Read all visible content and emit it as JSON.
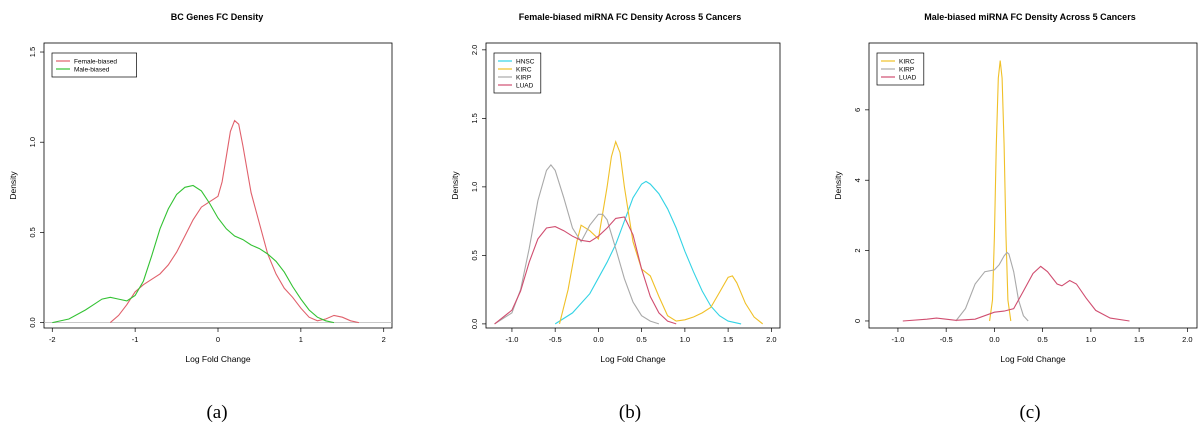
{
  "figure": {
    "captions": [
      "(a)",
      "(b)",
      "(c)"
    ]
  },
  "chart_data": [
    {
      "type": "line",
      "title": "BC Genes FC Density",
      "xlabel": "Log Fold Change",
      "ylabel": "Density",
      "xlim": [
        -2.1,
        2.1
      ],
      "ylim": [
        -0.03,
        1.55
      ],
      "xticks": [
        -2,
        -1,
        0,
        1,
        2
      ],
      "yticks": [
        0.0,
        0.5,
        1.0,
        1.5
      ],
      "tick_decimals": 0,
      "ytick_decimals": 1,
      "baseline": true,
      "grid": false,
      "legend": "top-left",
      "series": [
        {
          "name": "Female-biased",
          "color": "#e0606b",
          "x": [
            -1.3,
            -1.2,
            -1.1,
            -1.0,
            -0.9,
            -0.8,
            -0.7,
            -0.6,
            -0.5,
            -0.4,
            -0.3,
            -0.2,
            -0.1,
            0.0,
            0.05,
            0.1,
            0.15,
            0.2,
            0.25,
            0.3,
            0.35,
            0.4,
            0.5,
            0.6,
            0.7,
            0.8,
            0.9,
            1.0,
            1.1,
            1.2,
            1.3,
            1.4,
            1.5,
            1.6,
            1.7
          ],
          "y": [
            0.0,
            0.04,
            0.1,
            0.17,
            0.21,
            0.24,
            0.27,
            0.32,
            0.39,
            0.48,
            0.57,
            0.64,
            0.67,
            0.7,
            0.78,
            0.92,
            1.06,
            1.12,
            1.1,
            0.98,
            0.85,
            0.72,
            0.55,
            0.38,
            0.27,
            0.19,
            0.14,
            0.08,
            0.03,
            0.01,
            0.02,
            0.04,
            0.03,
            0.01,
            0.0
          ]
        },
        {
          "name": "Male-biased",
          "color": "#33c233",
          "x": [
            -2.0,
            -1.8,
            -1.6,
            -1.5,
            -1.4,
            -1.3,
            -1.2,
            -1.1,
            -1.0,
            -0.9,
            -0.8,
            -0.7,
            -0.6,
            -0.5,
            -0.4,
            -0.3,
            -0.2,
            -0.1,
            0.0,
            0.1,
            0.2,
            0.3,
            0.4,
            0.5,
            0.6,
            0.7,
            0.8,
            0.9,
            1.0,
            1.1,
            1.2,
            1.3,
            1.4
          ],
          "y": [
            0.0,
            0.02,
            0.07,
            0.1,
            0.13,
            0.14,
            0.13,
            0.12,
            0.15,
            0.23,
            0.37,
            0.52,
            0.63,
            0.71,
            0.75,
            0.76,
            0.73,
            0.66,
            0.58,
            0.52,
            0.48,
            0.46,
            0.43,
            0.41,
            0.38,
            0.34,
            0.28,
            0.2,
            0.13,
            0.07,
            0.03,
            0.01,
            0.0
          ]
        }
      ]
    },
    {
      "type": "line",
      "title": "Female-biased miRNA FC Density Across 5 Cancers",
      "xlabel": "Log Fold Change",
      "ylabel": "Density",
      "xlim": [
        -1.3,
        2.1
      ],
      "ylim": [
        -0.03,
        2.05
      ],
      "xticks": [
        -1.0,
        -0.5,
        0.0,
        0.5,
        1.0,
        1.5,
        2.0
      ],
      "yticks": [
        0.0,
        0.5,
        1.0,
        1.5,
        2.0
      ],
      "tick_decimals": 1,
      "ytick_decimals": 1,
      "baseline": false,
      "grid": false,
      "legend": "top-left",
      "series": [
        {
          "name": "HNSC",
          "color": "#33d3e5",
          "x": [
            -0.5,
            -0.3,
            -0.1,
            0.1,
            0.2,
            0.3,
            0.4,
            0.5,
            0.55,
            0.6,
            0.7,
            0.8,
            0.9,
            1.0,
            1.1,
            1.2,
            1.3,
            1.4,
            1.5,
            1.65
          ],
          "y": [
            0.0,
            0.08,
            0.22,
            0.45,
            0.58,
            0.75,
            0.92,
            1.02,
            1.04,
            1.02,
            0.95,
            0.84,
            0.7,
            0.53,
            0.38,
            0.24,
            0.13,
            0.06,
            0.02,
            0.0
          ]
        },
        {
          "name": "KIRC",
          "color": "#f0c027",
          "x": [
            -0.45,
            -0.35,
            -0.25,
            -0.2,
            -0.1,
            0.0,
            0.1,
            0.15,
            0.2,
            0.25,
            0.3,
            0.4,
            0.5,
            0.6,
            0.7,
            0.8,
            0.9,
            1.0,
            1.1,
            1.2,
            1.3,
            1.4,
            1.5,
            1.55,
            1.6,
            1.7,
            1.8,
            1.9
          ],
          "y": [
            0.0,
            0.25,
            0.6,
            0.72,
            0.68,
            0.62,
            1.0,
            1.22,
            1.33,
            1.25,
            1.0,
            0.6,
            0.4,
            0.35,
            0.2,
            0.06,
            0.02,
            0.03,
            0.05,
            0.08,
            0.12,
            0.23,
            0.34,
            0.35,
            0.3,
            0.15,
            0.05,
            0.0
          ]
        },
        {
          "name": "KIRP",
          "color": "#a9a9a9",
          "x": [
            -1.2,
            -1.0,
            -0.9,
            -0.8,
            -0.7,
            -0.6,
            -0.55,
            -0.5,
            -0.4,
            -0.3,
            -0.2,
            -0.1,
            0.0,
            0.05,
            0.1,
            0.2,
            0.3,
            0.4,
            0.5,
            0.6,
            0.7
          ],
          "y": [
            0.0,
            0.08,
            0.25,
            0.55,
            0.9,
            1.12,
            1.16,
            1.12,
            0.92,
            0.7,
            0.6,
            0.72,
            0.8,
            0.8,
            0.76,
            0.55,
            0.33,
            0.16,
            0.06,
            0.02,
            0.0
          ]
        },
        {
          "name": "LUAD",
          "color": "#d04e70",
          "x": [
            -1.2,
            -1.0,
            -0.9,
            -0.8,
            -0.7,
            -0.6,
            -0.5,
            -0.4,
            -0.3,
            -0.2,
            -0.1,
            0.0,
            0.1,
            0.2,
            0.3,
            0.4,
            0.5,
            0.6,
            0.7,
            0.8,
            0.9
          ],
          "y": [
            0.0,
            0.1,
            0.24,
            0.45,
            0.62,
            0.7,
            0.71,
            0.68,
            0.64,
            0.61,
            0.6,
            0.64,
            0.7,
            0.77,
            0.78,
            0.65,
            0.4,
            0.2,
            0.08,
            0.02,
            0.0
          ]
        }
      ]
    },
    {
      "type": "line",
      "title": "Male-biased miRNA FC Density Across 5 Cancers",
      "xlabel": "Log Fold Change",
      "ylabel": "Density",
      "xlim": [
        -1.3,
        2.1
      ],
      "ylim": [
        -0.2,
        7.9
      ],
      "xticks": [
        -1.0,
        -0.5,
        0.0,
        0.5,
        1.0,
        1.5,
        2.0
      ],
      "yticks": [
        0,
        2,
        4,
        6
      ],
      "tick_decimals": 1,
      "ytick_decimals": 0,
      "baseline": false,
      "grid": false,
      "legend": "top-left",
      "series": [
        {
          "name": "KIRC",
          "color": "#f0c027",
          "x": [
            -0.05,
            -0.02,
            0.0,
            0.02,
            0.04,
            0.06,
            0.08,
            0.1,
            0.12,
            0.14,
            0.17
          ],
          "y": [
            0.0,
            0.6,
            2.4,
            5.0,
            6.9,
            7.4,
            6.9,
            5.0,
            2.4,
            0.6,
            0.0
          ]
        },
        {
          "name": "KIRP",
          "color": "#a9a9a9",
          "x": [
            -0.4,
            -0.3,
            -0.2,
            -0.1,
            0.0,
            0.05,
            0.1,
            0.13,
            0.15,
            0.2,
            0.25,
            0.3,
            0.35
          ],
          "y": [
            0.0,
            0.35,
            1.05,
            1.4,
            1.45,
            1.6,
            1.85,
            1.95,
            1.9,
            1.4,
            0.6,
            0.15,
            0.0
          ]
        },
        {
          "name": "LUAD",
          "color": "#d04e70",
          "x": [
            -0.95,
            -0.7,
            -0.6,
            -0.4,
            -0.2,
            0.0,
            0.1,
            0.2,
            0.3,
            0.4,
            0.48,
            0.55,
            0.65,
            0.7,
            0.78,
            0.85,
            0.95,
            1.05,
            1.2,
            1.4
          ],
          "y": [
            0.0,
            0.05,
            0.08,
            0.02,
            0.05,
            0.25,
            0.28,
            0.35,
            0.85,
            1.35,
            1.55,
            1.4,
            1.05,
            1.0,
            1.15,
            1.05,
            0.65,
            0.3,
            0.08,
            0.0
          ]
        }
      ]
    }
  ]
}
